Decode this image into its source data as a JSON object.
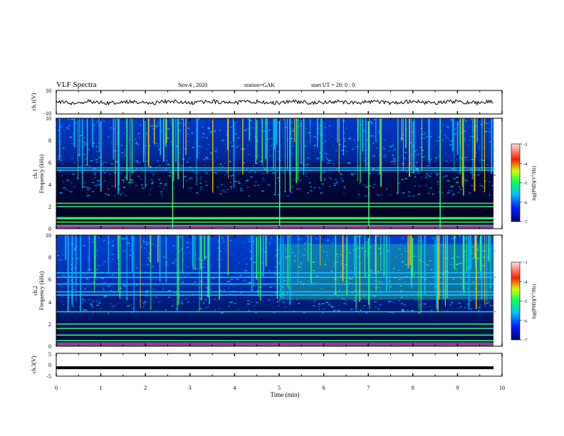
{
  "header": {
    "title": "VLF Spectra",
    "date": "Nov.4 , 2020",
    "station": "station=GAK",
    "start": "start UT = 20: 0 : 0"
  },
  "chart_data": [
    {
      "type": "line",
      "panel": "ch1-waveform",
      "ylabel": "ch.1(V)",
      "ylim": [
        -10,
        10
      ],
      "yticks": [
        10,
        -10
      ],
      "level_approx_V": 0
    },
    {
      "type": "heatmap",
      "panel": "ch1-spectrogram",
      "ylabel": "ch.1 Frequency (kHz)",
      "ylim": [
        0,
        10
      ],
      "yticks": [
        0,
        2,
        4,
        6,
        8,
        10
      ],
      "colorbar": {
        "label": "log(PSD)(V^2/Hz)",
        "range": [
          -7,
          -3
        ],
        "ticks": [
          -3,
          -4,
          -5,
          -6,
          -7
        ]
      },
      "bands_kHz": [
        0.3,
        0.6,
        0.9,
        1.0,
        2.0,
        2.3,
        5.3,
        5.5
      ],
      "strong_event_min": [
        2.6,
        5.0,
        7.0,
        8.6
      ]
    },
    {
      "type": "heatmap",
      "panel": "ch2-spectrogram",
      "ylabel": "ch.2 Frequency (kHz)",
      "ylim": [
        0,
        10
      ],
      "yticks": [
        0,
        2,
        4,
        6,
        8,
        10
      ],
      "colorbar": {
        "label": "log(PSD)(V^2/Hz)",
        "range": [
          -7,
          -3
        ],
        "ticks": [
          -3,
          -4,
          -5,
          -6,
          -7
        ]
      },
      "bands_kHz": [
        0.5,
        1.0,
        1.6,
        2.0,
        3.1,
        4.6,
        4.9,
        5.6,
        6.2,
        6.6
      ],
      "enhanced_interval_min": [
        5.0,
        9.8
      ]
    },
    {
      "type": "line",
      "panel": "ch3-waveform",
      "ylabel": "ch.3(V)",
      "ylim": [
        -5,
        5
      ],
      "yticks": [
        5,
        0,
        -5
      ],
      "level_approx_V": -1.3
    }
  ],
  "xaxis": {
    "label": "Time (min)",
    "range": [
      0,
      10
    ],
    "ticks": [
      "0",
      "1",
      "2",
      "3",
      "4",
      "5",
      "6",
      "7",
      "8",
      "9",
      "10"
    ]
  },
  "colors": {
    "background": "#00002a",
    "colormap": [
      "#0000a0",
      "#0040ff",
      "#00c8ff",
      "#00ff80",
      "#ffff00",
      "#ff4000",
      "#ffc8c8"
    ],
    "trace": "#000000"
  }
}
